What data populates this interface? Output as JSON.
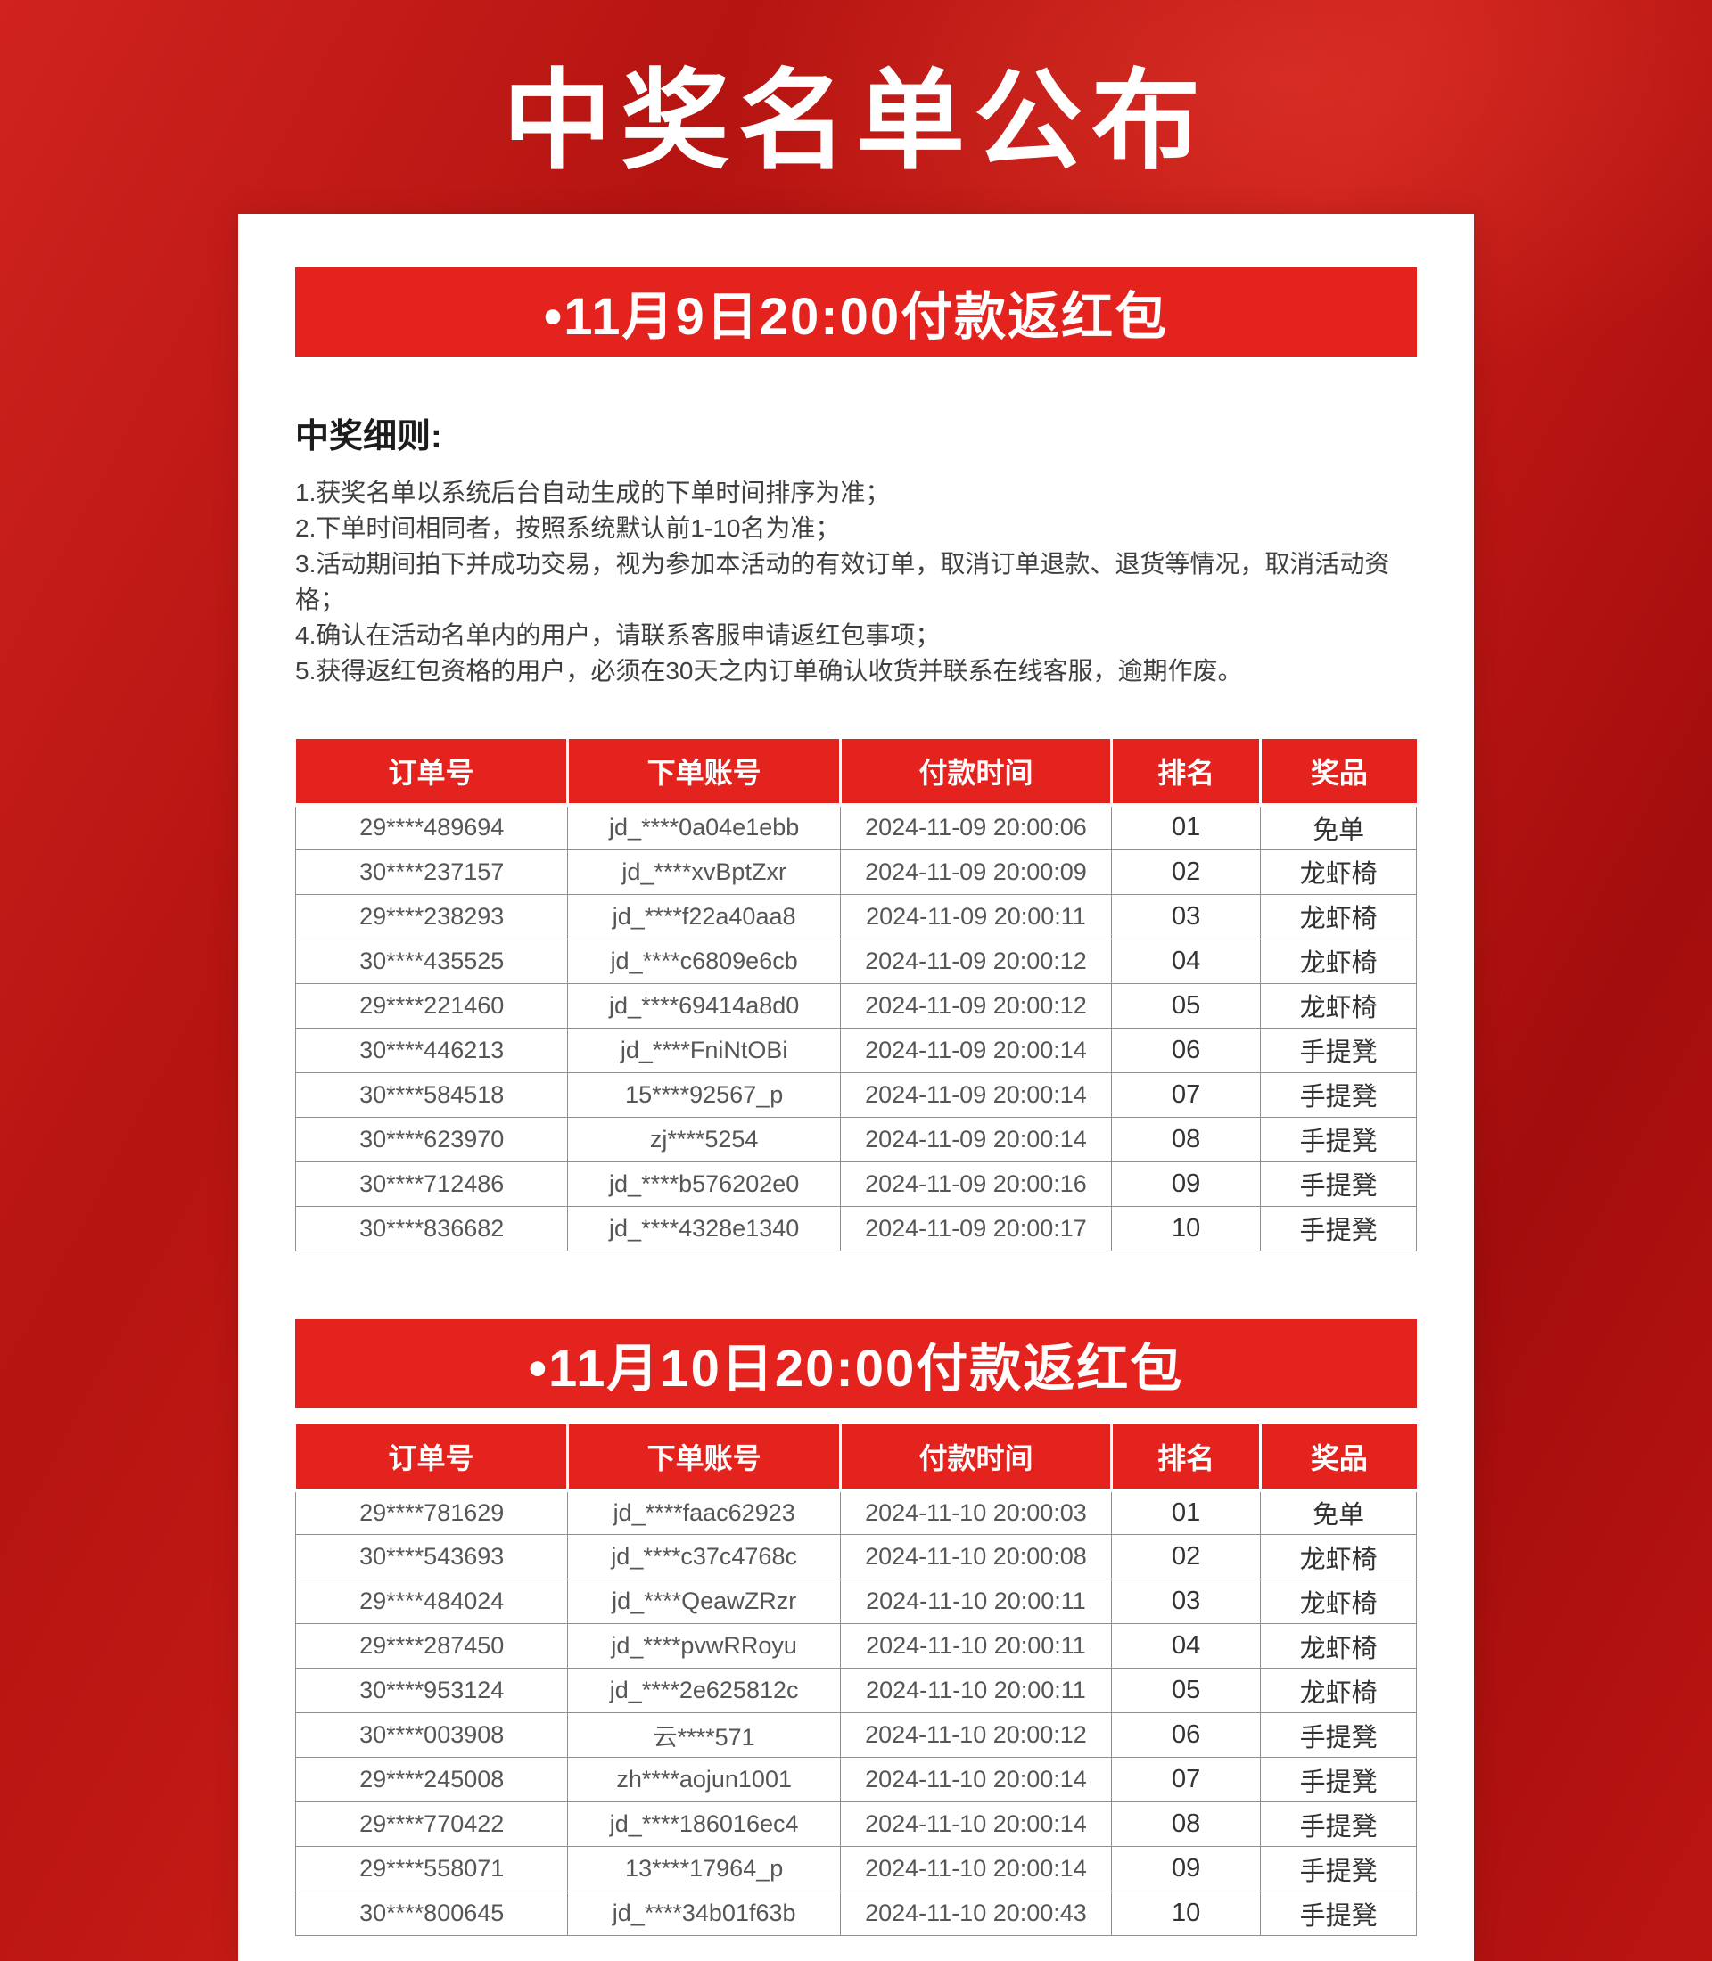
{
  "title": "中奖名单公布",
  "colors": {
    "accent_red": "#e5231e",
    "banner_text": "#ffffff",
    "cell_text": "#565658"
  },
  "rules": {
    "title": "中奖细则:",
    "items": [
      "1.获奖名单以系统后台自动生成的下单时间排序为准；",
      "2.下单时间相同者，按照系统默认前1-10名为准；",
      "3.活动期间拍下并成功交易，视为参加本活动的有效订单，取消订单退款、退货等情况，取消活动资格；",
      "4.确认在活动名单内的用户，请联系客服申请返红包事项；",
      "5.获得返红包资格的用户，必须在30天之内订单确认收货并联系在线客服，逾期作废。"
    ]
  },
  "sections": [
    {
      "banner_label": "•11月9日20:00付款返红包",
      "table": {
        "columns": [
          "订单号",
          "下单账号",
          "付款时间",
          "排名",
          "奖品"
        ],
        "rows": [
          [
            "29****489694",
            "jd_****0a04e1ebb",
            "2024-11-09 20:00:06",
            "01",
            "免单"
          ],
          [
            "30****237157",
            "jd_****xvBptZxr",
            "2024-11-09 20:00:09",
            "02",
            "龙虾椅"
          ],
          [
            "29****238293",
            "jd_****f22a40aa8",
            "2024-11-09 20:00:11",
            "03",
            "龙虾椅"
          ],
          [
            "30****435525",
            "jd_****c6809e6cb",
            "2024-11-09 20:00:12",
            "04",
            "龙虾椅"
          ],
          [
            "29****221460",
            "jd_****69414a8d0",
            "2024-11-09 20:00:12",
            "05",
            "龙虾椅"
          ],
          [
            "30****446213",
            "jd_****FniNtOBi",
            "2024-11-09 20:00:14",
            "06",
            "手提凳"
          ],
          [
            "30****584518",
            "15****92567_p",
            "2024-11-09 20:00:14",
            "07",
            "手提凳"
          ],
          [
            "30****623970",
            "zj****5254",
            "2024-11-09 20:00:14",
            "08",
            "手提凳"
          ],
          [
            "30****712486",
            "jd_****b576202e0",
            "2024-11-09 20:00:16",
            "09",
            "手提凳"
          ],
          [
            "30****836682",
            "jd_****4328e1340",
            "2024-11-09 20:00:17",
            "10",
            "手提凳"
          ]
        ]
      }
    },
    {
      "banner_label": "•11月10日20:00付款返红包",
      "table": {
        "columns": [
          "订单号",
          "下单账号",
          "付款时间",
          "排名",
          "奖品"
        ],
        "rows": [
          [
            "29****781629",
            "jd_****faac62923",
            "2024-11-10 20:00:03",
            "01",
            "免单"
          ],
          [
            "30****543693",
            "jd_****c37c4768c",
            "2024-11-10 20:00:08",
            "02",
            "龙虾椅"
          ],
          [
            "29****484024",
            "jd_****QeawZRzr",
            "2024-11-10 20:00:11",
            "03",
            "龙虾椅"
          ],
          [
            "29****287450",
            "jd_****pvwRRoyu",
            "2024-11-10 20:00:11",
            "04",
            "龙虾椅"
          ],
          [
            "30****953124",
            "jd_****2e625812c",
            "2024-11-10 20:00:11",
            "05",
            "龙虾椅"
          ],
          [
            "30****003908",
            "云****571",
            "2024-11-10 20:00:12",
            "06",
            "手提凳"
          ],
          [
            "29****245008",
            "zh****aojun1001",
            "2024-11-10 20:00:14",
            "07",
            "手提凳"
          ],
          [
            "29****770422",
            "jd_****186016ec4",
            "2024-11-10 20:00:14",
            "08",
            "手提凳"
          ],
          [
            "29****558071",
            "13****17964_p",
            "2024-11-10 20:00:14",
            "09",
            "手提凳"
          ],
          [
            "30****800645",
            "jd_****34b01f63b",
            "2024-11-10 20:00:43",
            "10",
            "手提凳"
          ]
        ]
      }
    }
  ]
}
